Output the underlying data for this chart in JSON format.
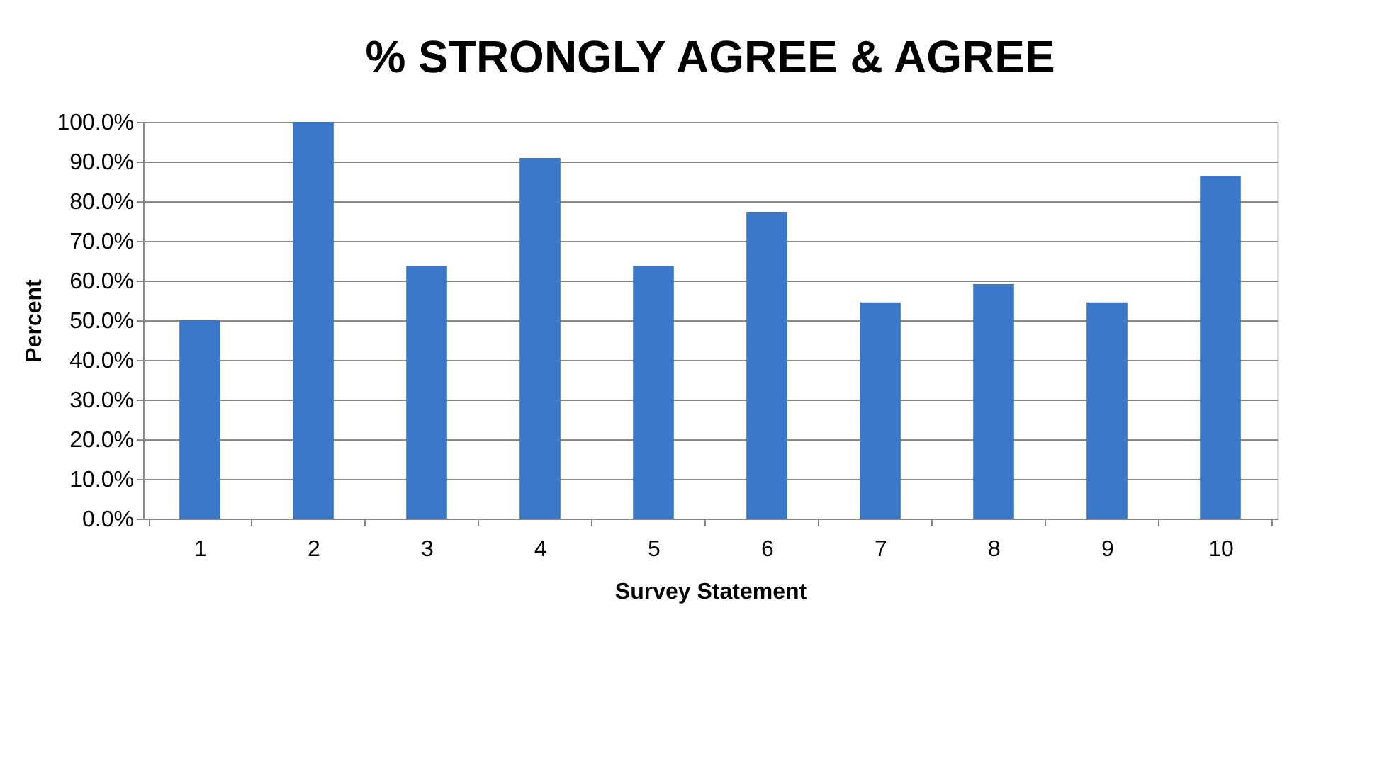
{
  "chart_data": {
    "type": "bar",
    "title": "% STRONGLY AGREE & AGREE",
    "xlabel": "Survey Statement",
    "ylabel": "Percent",
    "categories": [
      "1",
      "2",
      "3",
      "4",
      "5",
      "6",
      "7",
      "8",
      "9",
      "10"
    ],
    "values": [
      50.0,
      100.0,
      63.6,
      90.9,
      63.6,
      77.3,
      54.5,
      59.1,
      54.5,
      86.4
    ],
    "color": "#3a77c6",
    "ylim": [
      0,
      100
    ],
    "yticks": [
      {
        "value": 0,
        "label": "0.0%"
      },
      {
        "value": 10,
        "label": "10.0%"
      },
      {
        "value": 20,
        "label": "20.0%"
      },
      {
        "value": 30,
        "label": "30.0%"
      },
      {
        "value": 40,
        "label": "40.0%"
      },
      {
        "value": 50,
        "label": "50.0%"
      },
      {
        "value": 60,
        "label": "60.0%"
      },
      {
        "value": 70,
        "label": "70.0%"
      },
      {
        "value": 80,
        "label": "80.0%"
      },
      {
        "value": 90,
        "label": "90.0%"
      },
      {
        "value": 100,
        "label": "100.0%"
      }
    ],
    "grid": "y"
  }
}
